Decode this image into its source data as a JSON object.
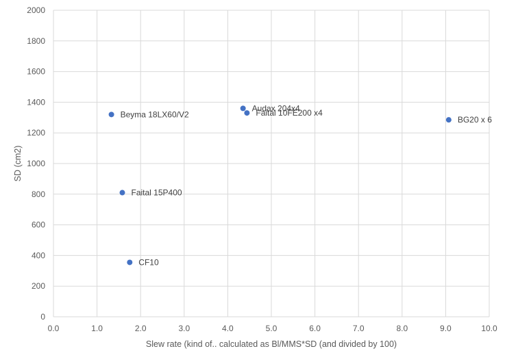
{
  "chart_data": {
    "type": "scatter",
    "title": "",
    "xlabel": "Slew rate (kind of.. calculated as Bl/MMS*SD (and divided by 100)",
    "ylabel": "SD (cm2)",
    "xlim": [
      0,
      10
    ],
    "ylim": [
      0,
      2000
    ],
    "x_ticks": [
      "0.0",
      "1.0",
      "2.0",
      "3.0",
      "4.0",
      "5.0",
      "6.0",
      "7.0",
      "8.0",
      "9.0",
      "10.0"
    ],
    "y_ticks": [
      "0",
      "200",
      "400",
      "600",
      "800",
      "1000",
      "1200",
      "1400",
      "1600",
      "1800",
      "2000"
    ],
    "grid": true,
    "marker_color": "#4472c4",
    "points": [
      {
        "label": "Beyma 18LX60/V2",
        "x": 1.33,
        "y": 1320
      },
      {
        "label": "Faital 15P400",
        "x": 1.58,
        "y": 810
      },
      {
        "label": "CF10",
        "x": 1.75,
        "y": 355
      },
      {
        "label": "Audax 204x4",
        "x": 4.35,
        "y": 1360
      },
      {
        "label": "Faital 10FE200 x4",
        "x": 4.44,
        "y": 1330
      },
      {
        "label": "BG20 x 6",
        "x": 9.07,
        "y": 1285
      }
    ]
  }
}
